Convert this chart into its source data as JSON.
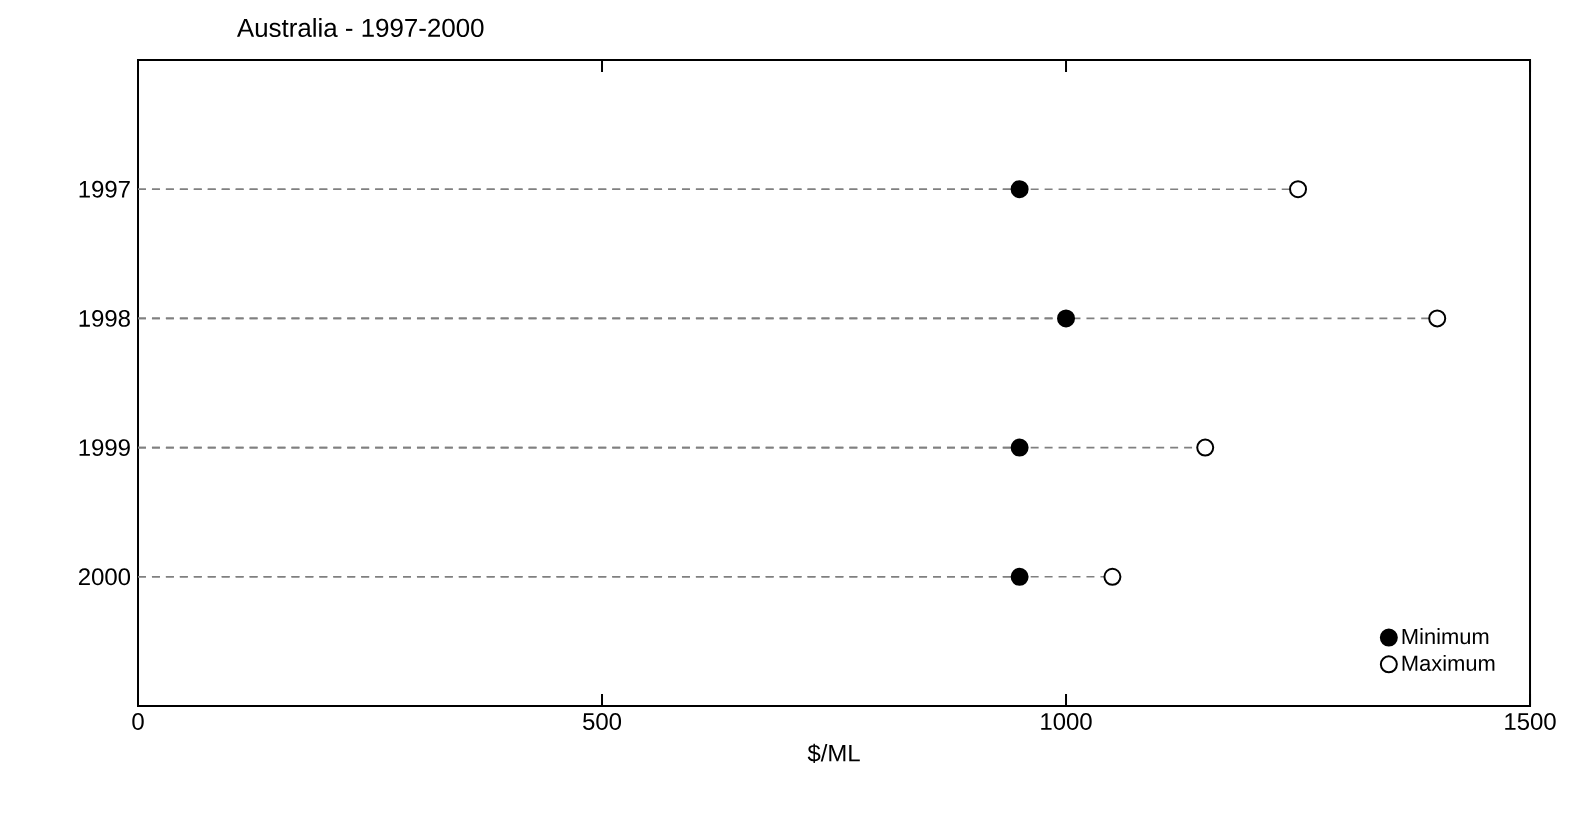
{
  "chart_data": {
    "type": "lollipop",
    "title": "Australia - 1997-2000",
    "xlabel": "$/ML",
    "orientation": "horizontal",
    "categories": [
      "1997",
      "1998",
      "1999",
      "2000"
    ],
    "series": [
      {
        "name": "Minimum",
        "color": "#000000",
        "values": [
          950,
          1000,
          950,
          950
        ]
      },
      {
        "name": "Maximum",
        "color": "#ffffff",
        "values": [
          1250,
          1400,
          1150,
          1050
        ]
      }
    ],
    "xlim": [
      0,
      1500
    ],
    "xticks": [
      0,
      500,
      1000,
      1500
    ],
    "marker": "circle",
    "line_style": "dashed",
    "legend": "bottom right",
    "grid": false
  }
}
